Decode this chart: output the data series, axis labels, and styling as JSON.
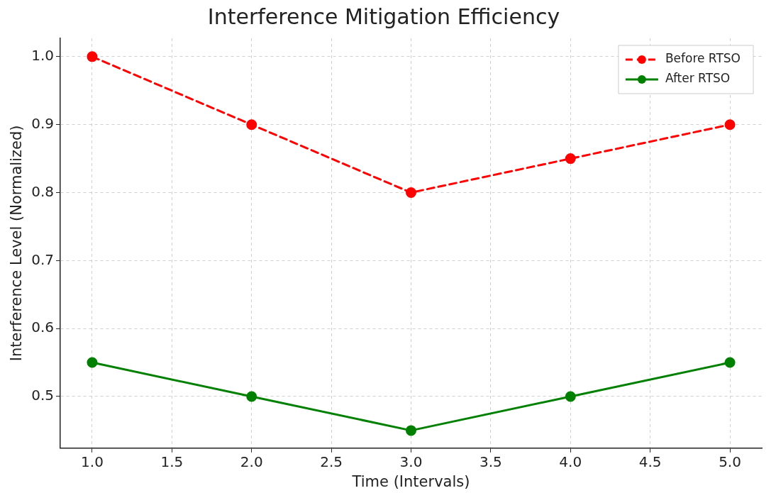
{
  "chart_data": {
    "type": "line",
    "title": "Interference Mitigation Efficiency",
    "xlabel": "Time (Intervals)",
    "ylabel": "Interference Level (Normalized)",
    "x": [
      1,
      2,
      3,
      4,
      5
    ],
    "series": [
      {
        "name": "Before RTSO",
        "color": "#ff0000",
        "values": [
          1.0,
          0.9,
          0.8,
          0.85,
          0.9
        ],
        "line_style": "dashed"
      },
      {
        "name": "After RTSO",
        "color": "#008000",
        "values": [
          0.55,
          0.5,
          0.45,
          0.5,
          0.55
        ],
        "line_style": "solid"
      }
    ],
    "xlim": [
      0.8,
      5.2
    ],
    "xticks": [
      {
        "value": 1,
        "label": "1.0"
      },
      {
        "value": 1.5,
        "label": "1.5"
      },
      {
        "value": 2,
        "label": "2.0"
      },
      {
        "value": 2.5,
        "label": "2.5"
      },
      {
        "value": 3,
        "label": "3.0"
      },
      {
        "value": 3.5,
        "label": "3.5"
      },
      {
        "value": 4,
        "label": "4.0"
      },
      {
        "value": 4.5,
        "label": "4.5"
      },
      {
        "value": 5,
        "label": "5.0"
      }
    ],
    "ylim": [
      0.424,
      1.027
    ],
    "yticks": [
      {
        "value": 0.5,
        "label": "0.5"
      },
      {
        "value": 0.6,
        "label": "0.6"
      },
      {
        "value": 0.7,
        "label": "0.7"
      },
      {
        "value": 0.8,
        "label": "0.8"
      },
      {
        "value": 0.9,
        "label": "0.9"
      },
      {
        "value": 1,
        "label": "1.0"
      }
    ],
    "grid": true,
    "legend": "top right",
    "marker": "circle"
  }
}
